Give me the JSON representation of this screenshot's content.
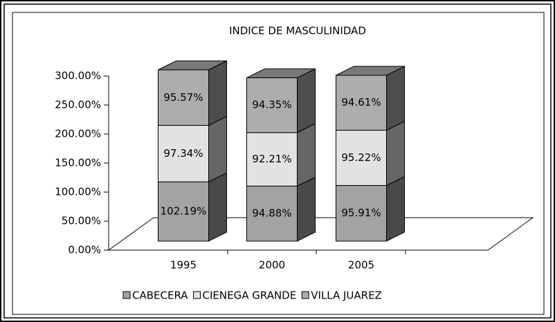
{
  "chart_data": {
    "type": "bar3d_stacked",
    "title": "INDICE DE MASCULINIDAD",
    "categories": [
      "1995",
      "2000",
      "2005"
    ],
    "series": [
      {
        "name": "CABECERA",
        "color": "#a3a3a3",
        "values": [
          102.19,
          94.88,
          95.91
        ],
        "value_labels": [
          "102.19%",
          "94.88%",
          "95.91%"
        ]
      },
      {
        "name": "CIENEGA GRANDE",
        "color": "#e2e2e2",
        "values": [
          97.34,
          92.21,
          95.22
        ],
        "value_labels": [
          "97.34%",
          "92.21%",
          "95.22%"
        ]
      },
      {
        "name": "VILLA JUAREZ",
        "color": "#adadad",
        "values": [
          95.57,
          94.35,
          94.61
        ],
        "value_labels": [
          "95.57%",
          "94.35%",
          "94.61%"
        ]
      }
    ],
    "ylim": [
      0,
      300
    ],
    "yticks": [
      {
        "value": 0,
        "label": "0.00%"
      },
      {
        "value": 50,
        "label": "50.00%"
      },
      {
        "value": 100,
        "label": "100.00%"
      },
      {
        "value": 150,
        "label": "150.00%"
      },
      {
        "value": 200,
        "label": "200.00%"
      },
      {
        "value": 250,
        "label": "250.00%"
      },
      {
        "value": 300,
        "label": "300.00%"
      }
    ],
    "legend": "bottom"
  }
}
